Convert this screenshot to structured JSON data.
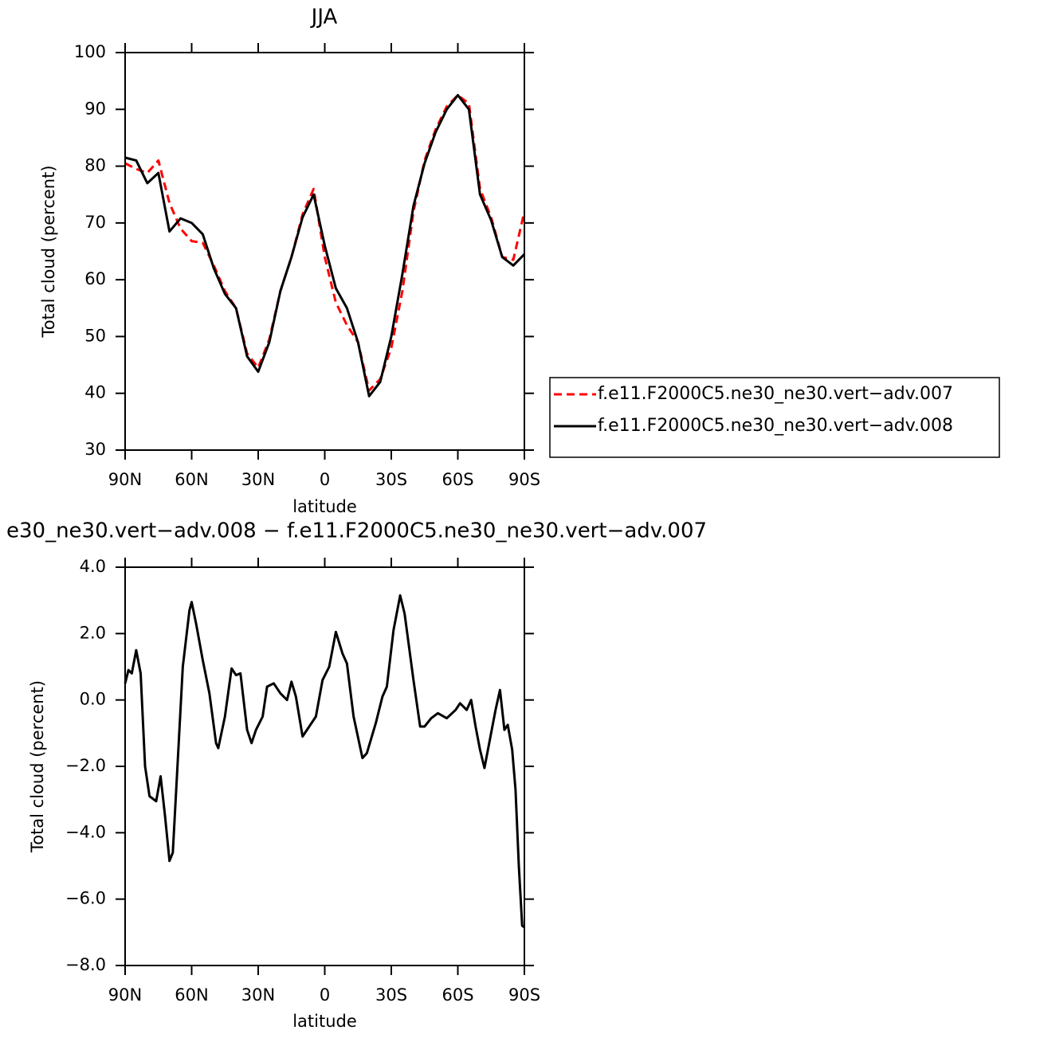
{
  "chart_data": [
    {
      "type": "line",
      "title": "JJA",
      "x_label": "latitude",
      "y_label": "Total cloud (percent)",
      "x": [
        90,
        85,
        80,
        75,
        70,
        65,
        60,
        55,
        50,
        45,
        40,
        35,
        30,
        25,
        20,
        15,
        10,
        5,
        0,
        -5,
        -10,
        -15,
        -20,
        -25,
        -30,
        -35,
        -40,
        -45,
        -50,
        -55,
        -60,
        -65,
        -70,
        -75,
        -80,
        -85,
        -90
      ],
      "xlim": [
        90,
        -90
      ],
      "xticks": [
        {
          "value": 90,
          "label": "90N"
        },
        {
          "value": 60,
          "label": "60N"
        },
        {
          "value": 30,
          "label": "30N"
        },
        0,
        {
          "value": -30,
          "label": "30S"
        },
        {
          "value": -60,
          "label": "60S"
        },
        {
          "value": -90,
          "label": "90S"
        }
      ],
      "ylim": [
        30,
        100
      ],
      "yticks": [
        30,
        40,
        50,
        60,
        70,
        80,
        90,
        100
      ],
      "legend": "right",
      "series": [
        {
          "name": "f.e11.F2000C5.ne30_ne30.vert−adv.007",
          "color": "#ff0000",
          "dashed": true,
          "values": [
            80.5,
            79.5,
            78.8,
            81,
            73.5,
            69,
            66.8,
            66.5,
            62.5,
            58,
            55,
            47,
            44.5,
            49.5,
            58,
            64,
            71.5,
            76,
            64,
            56,
            52,
            49,
            40.5,
            42.5,
            48,
            58,
            72,
            81,
            86.5,
            90.5,
            92.5,
            91,
            76,
            71,
            64,
            63.5,
            72
          ]
        },
        {
          "name": "f.e11.F2000C5.ne30_ne30.vert−adv.008",
          "color": "#000000",
          "dashed": false,
          "values": [
            81.5,
            81,
            77,
            78.8,
            68.5,
            70.8,
            70,
            68,
            62,
            57.5,
            55,
            46.5,
            43.8,
            49,
            58,
            64,
            71,
            75,
            66,
            58.5,
            55,
            49,
            39.5,
            42,
            50,
            61,
            73,
            80.5,
            86,
            90,
            92.5,
            90,
            75,
            70.5,
            64,
            62.5,
            64.5
          ]
        }
      ]
    },
    {
      "type": "line",
      "title": "e30_ne30.vert−adv.008 − f.e11.F2000C5.ne30_ne30.vert−adv.007",
      "x_label": "latitude",
      "y_label": "Total cloud (percent)",
      "x": [
        90,
        88.5,
        87,
        85,
        83,
        81,
        79,
        76,
        74,
        72,
        70,
        68.5,
        66,
        64,
        61,
        60,
        58,
        55,
        52,
        49,
        48,
        45,
        42,
        40,
        38,
        35,
        33,
        31,
        28,
        26,
        23,
        20,
        17,
        15,
        13,
        10,
        7,
        4,
        1,
        -2,
        -5,
        -8,
        -10,
        -13,
        -17,
        -19,
        -23,
        -26,
        -28,
        -31,
        -34,
        -36,
        -38,
        -40,
        -43,
        -45,
        -48,
        -51,
        -55,
        -59,
        -61,
        -64,
        -66,
        -68,
        -70,
        -72,
        -75,
        -77,
        -79,
        -81,
        -82.5,
        -84.5,
        -86,
        -87.5,
        -89,
        -90
      ],
      "xlim": [
        90,
        -90
      ],
      "xticks": [
        {
          "value": 90,
          "label": "90N"
        },
        {
          "value": 60,
          "label": "60N"
        },
        {
          "value": 30,
          "label": "30N"
        },
        0,
        {
          "value": -30,
          "label": "30S"
        },
        {
          "value": -60,
          "label": "60S"
        },
        {
          "value": -90,
          "label": "90S"
        }
      ],
      "ylim": [
        -8,
        4
      ],
      "yticks": [
        {
          "value": -8,
          "label": "−8.0"
        },
        {
          "value": -6,
          "label": "−6.0"
        },
        {
          "value": -4,
          "label": "−4.0"
        },
        {
          "value": -2,
          "label": "−2.0"
        },
        {
          "value": 0,
          "label": "0.0"
        },
        {
          "value": 2,
          "label": "2.0"
        },
        {
          "value": 4,
          "label": "4.0"
        }
      ],
      "series": [
        {
          "color": "#000000",
          "dashed": false,
          "values": [
            0.5,
            0.9,
            0.8,
            1.5,
            0.8,
            -2,
            -2.9,
            -3.05,
            -2.3,
            -3.5,
            -4.85,
            -4.6,
            -1.5,
            1,
            2.7,
            2.95,
            2.3,
            1.2,
            0.2,
            -1.3,
            -1.45,
            -0.5,
            0.95,
            0.75,
            0.8,
            -0.9,
            -1.3,
            -0.9,
            -0.5,
            0.4,
            0.5,
            0.2,
            0,
            0.55,
            0.1,
            -1.1,
            -0.8,
            -0.5,
            0.6,
            1,
            2.05,
            1.4,
            1.1,
            -0.5,
            -1.75,
            -1.6,
            -0.7,
            0.1,
            0.4,
            2.1,
            3.15,
            2.6,
            1.6,
            0.6,
            -0.8,
            -0.8,
            -0.55,
            -0.4,
            -0.55,
            -0.3,
            -0.1,
            -0.3,
            0,
            -0.8,
            -1.5,
            -2.05,
            -1,
            -0.3,
            0.3,
            -0.9,
            -0.75,
            -1.5,
            -2.7,
            -5,
            -6.8,
            -6.85
          ]
        }
      ]
    }
  ]
}
